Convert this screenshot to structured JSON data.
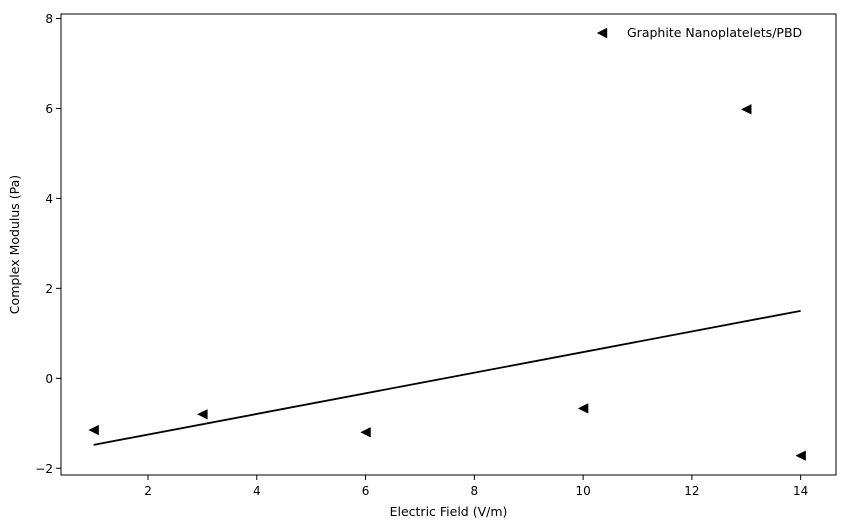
{
  "chart_data": {
    "type": "scatter",
    "title": "",
    "xlabel": "Electric Field (V/m)",
    "ylabel": "Complex Modulus (Pa)",
    "xlim": [
      0.4,
      14.65
    ],
    "ylim": [
      -2.15,
      8.1
    ],
    "xticks": [
      2,
      4,
      6,
      8,
      10,
      12,
      14
    ],
    "yticks": [
      -2,
      0,
      2,
      4,
      6,
      8
    ],
    "xtick_labels": [
      "2",
      "4",
      "6",
      "8",
      "10",
      "12",
      "14"
    ],
    "ytick_labels": [
      "−2",
      "0",
      "2",
      "4",
      "6",
      "8"
    ],
    "grid": false,
    "legend_position": "top-right",
    "series": [
      {
        "name": "Graphite Nanoplatelets/PBD",
        "marker": "triangle-left",
        "color": "#000000",
        "x": [
          1,
          3,
          6,
          10,
          13,
          14
        ],
        "y": [
          -1.15,
          -0.8,
          -1.2,
          -0.67,
          5.98,
          -1.72
        ]
      }
    ],
    "fit_line": {
      "color": "#000000",
      "x": [
        1,
        14
      ],
      "y": [
        -1.48,
        1.5
      ]
    }
  }
}
